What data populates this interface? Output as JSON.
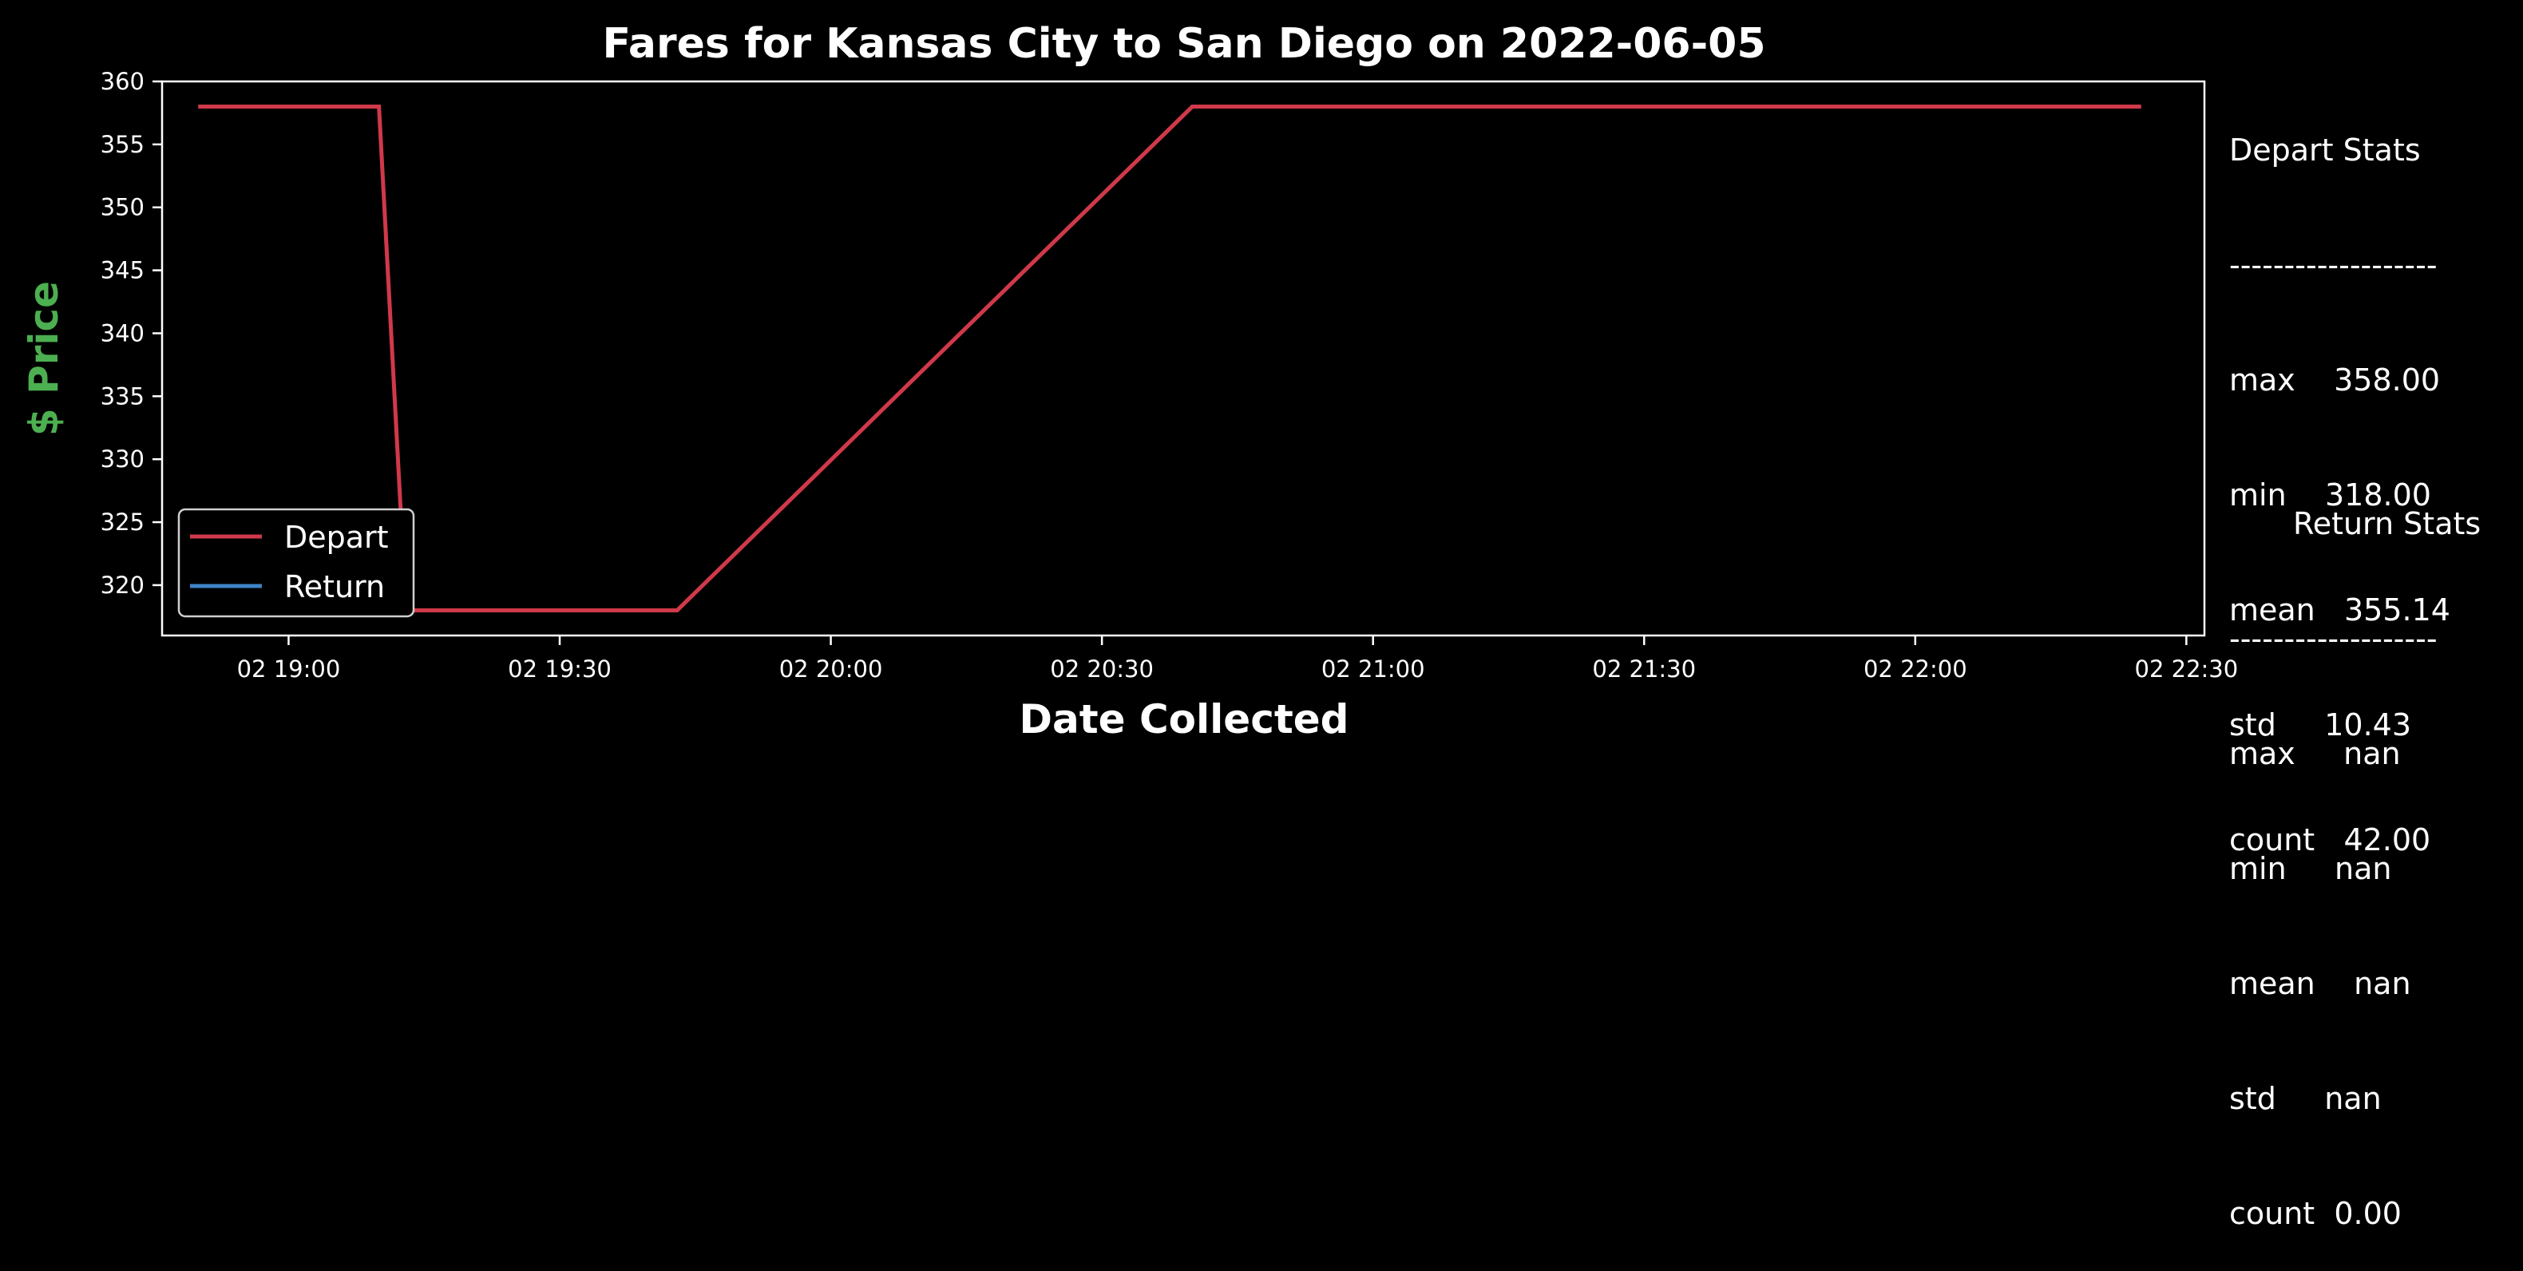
{
  "chart_data": {
    "type": "line",
    "title": "Fares for Kansas City to San Diego on 2022-06-05",
    "xlabel": "Date Collected",
    "ylabel": "$ Price",
    "ylim": [
      316,
      360
    ],
    "yticks": [
      320,
      325,
      330,
      335,
      340,
      345,
      350,
      355,
      360
    ],
    "xlim": [
      "18:46",
      "22:32"
    ],
    "xticks": [
      "02 19:00",
      "02 19:30",
      "02 20:00",
      "02 20:30",
      "02 21:00",
      "02 21:30",
      "02 22:00",
      "02 22:30"
    ],
    "xtick_times": [
      "19:00",
      "19:30",
      "20:00",
      "20:30",
      "21:00",
      "21:30",
      "22:00",
      "22:30"
    ],
    "grid": false,
    "legend_position": "lower-left",
    "series": [
      {
        "name": "Depart",
        "color": "#d0394a",
        "x": [
          "18:50",
          "19:10",
          "19:13",
          "19:43",
          "20:40",
          "22:25"
        ],
        "y": [
          358,
          358,
          318,
          318,
          358,
          358
        ]
      },
      {
        "name": "Return",
        "color": "#3d85c6",
        "x": [],
        "y": []
      }
    ],
    "colors": {
      "background": "#000000",
      "axes": "#ffffff",
      "ylabel": "#4caf50"
    }
  },
  "depart_stats": {
    "title": "Depart Stats",
    "divider": "-------------------",
    "rows": [
      "max    358.00",
      "min    318.00",
      "mean   355.14",
      "std     10.43",
      "count   42.00"
    ]
  },
  "return_stats": {
    "title": "Return Stats",
    "divider": "-------------------",
    "rows": [
      "max     nan",
      "min     nan",
      "mean    nan",
      "std     nan",
      "count  0.00"
    ]
  }
}
